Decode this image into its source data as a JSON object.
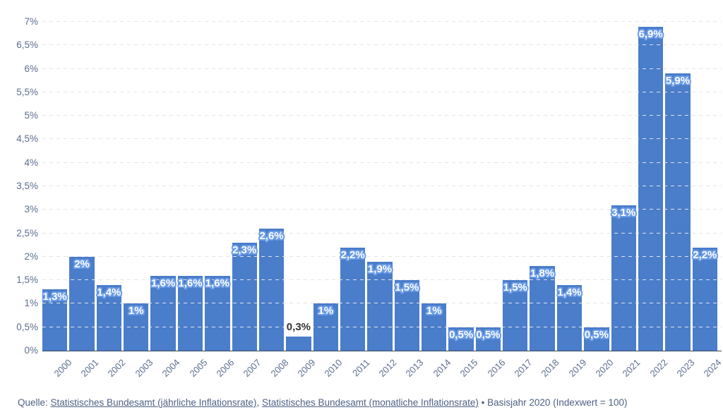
{
  "chart_data": {
    "type": "bar",
    "title": "",
    "categories": [
      "2000",
      "2001",
      "2002",
      "2003",
      "2004",
      "2005",
      "2006",
      "2007",
      "2008",
      "2009",
      "2010",
      "2011",
      "2012",
      "2013",
      "2014",
      "2015",
      "2016",
      "2017",
      "2018",
      "2019",
      "2020",
      "2021",
      "2022",
      "2023",
      "2024"
    ],
    "values": [
      1.3,
      2,
      1.4,
      1,
      1.6,
      1.6,
      1.6,
      2.3,
      2.6,
      0.3,
      1,
      2.2,
      1.9,
      1.5,
      1,
      0.5,
      0.5,
      1.5,
      1.8,
      1.4,
      0.5,
      3.1,
      6.9,
      5.9,
      2.2
    ],
    "bar_labels": [
      "1,3%",
      "2%",
      "1,4%",
      "1%",
      "1,6%",
      "1,6%",
      "1,6%",
      "2,3%",
      "2,6%",
      "0,3%",
      "1%",
      "2,2%",
      "1,9%",
      "1,5%",
      "1%",
      "0,5%",
      "0,5%",
      "1,5%",
      "1,8%",
      "1,4%",
      "0,5%",
      "3,1%",
      "6,9%",
      "5,9%",
      "2,2%"
    ],
    "outside_label_years": [
      "2009"
    ],
    "xlabel": "",
    "ylabel": "",
    "ylim": [
      0,
      7
    ],
    "ytick_step": 0.5,
    "ytick_labels": [
      "0%",
      "0,5%",
      "1%",
      "1,5%",
      "2%",
      "2,5%",
      "3%",
      "3,5%",
      "4%",
      "4,5%",
      "5%",
      "5,5%",
      "6%",
      "6,5%",
      "7%"
    ],
    "grid": "horizontal-dashed",
    "legend": "none",
    "bar_color": "#4a7dca",
    "label_halo_color": "#6d9de8",
    "outside_label_color": "#333333",
    "axis_text_color": "#5b6e8e",
    "baseline_color": "#3a4a63",
    "gridline_color": "#e4e5e9"
  },
  "footer": {
    "prefix": "Quelle: ",
    "link1": "Statistisches Bundesamt (jährliche Inflationsrate)",
    "separator": ", ",
    "link2": "Statistisches Bundesamt (monatliche Inflationsrate)",
    "suffix": " • Basisjahr 2020 (Indexwert = 100)"
  }
}
